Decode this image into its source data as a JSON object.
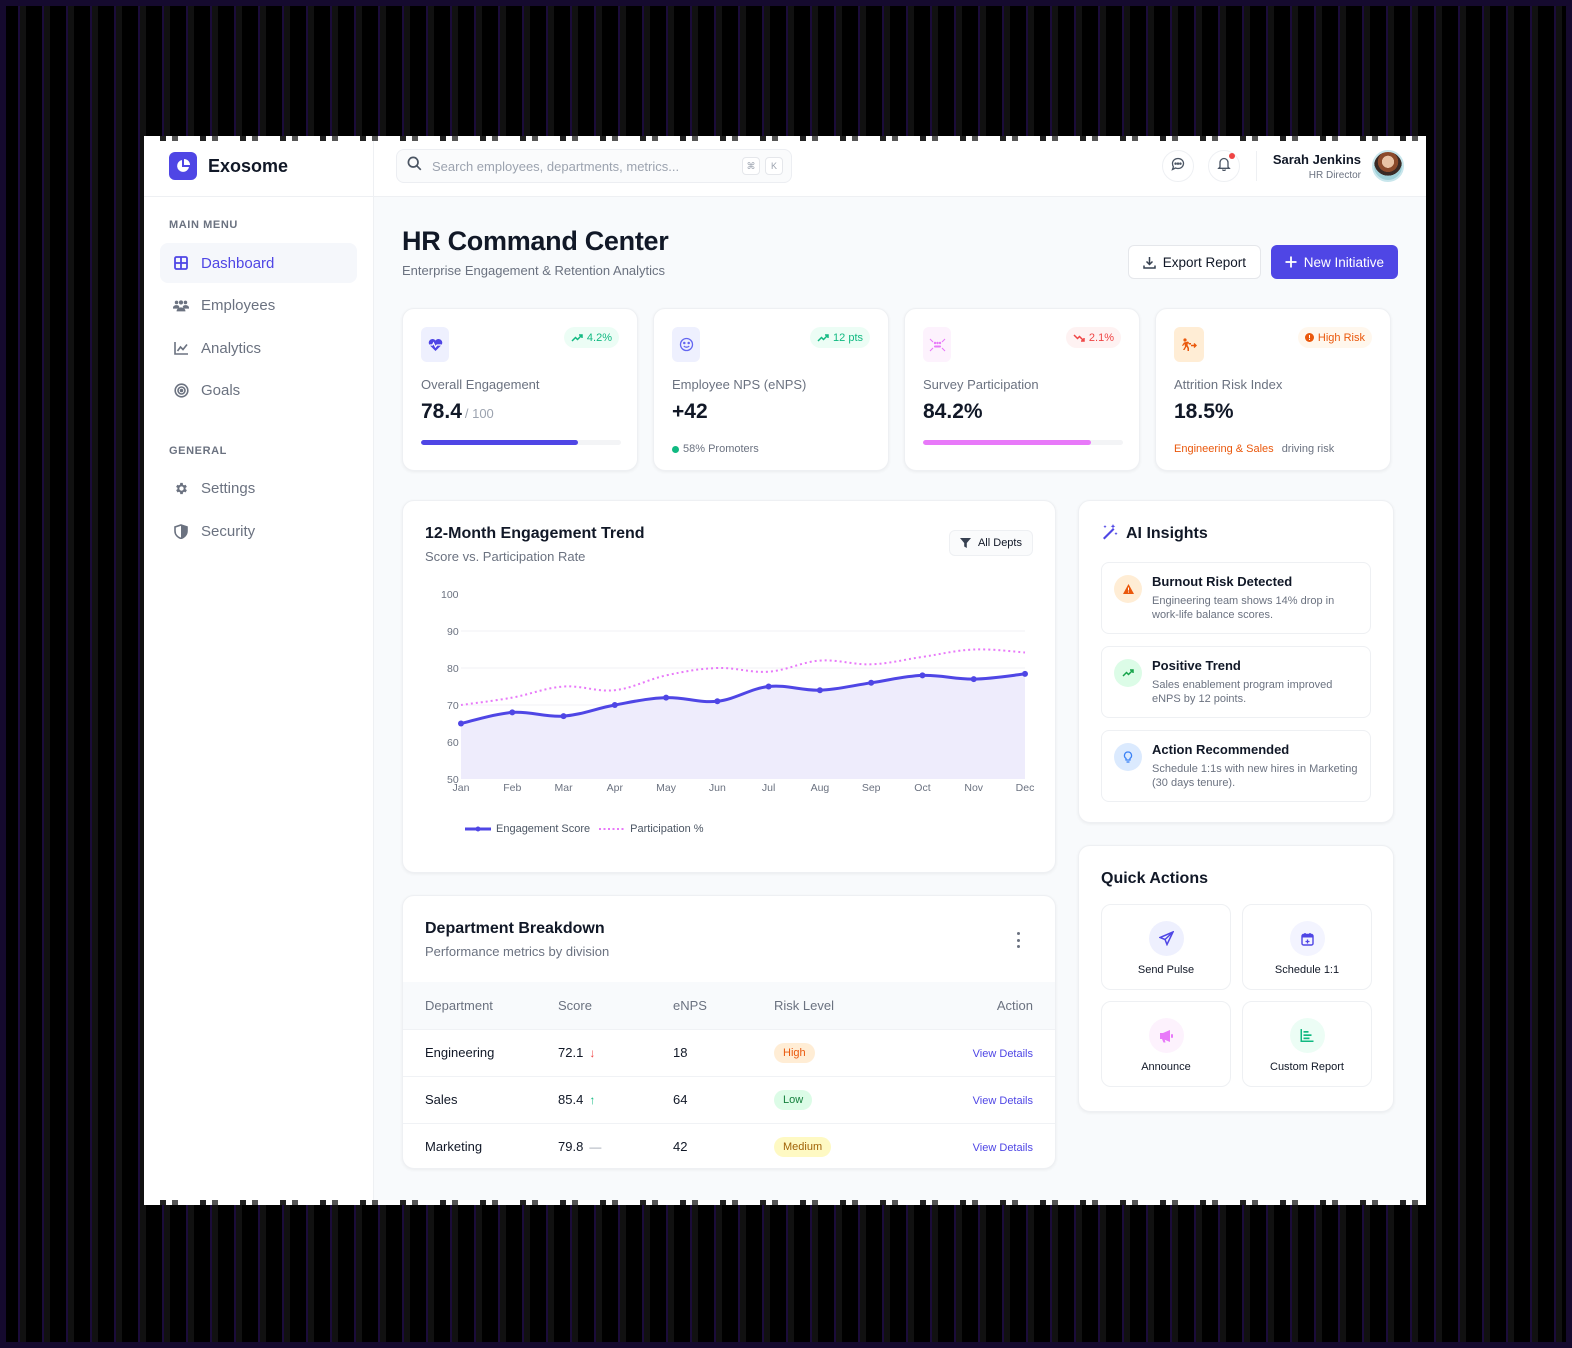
{
  "brand": {
    "name": "Exosome",
    "accent": "#4f46e5"
  },
  "sidebar": {
    "main_heading": "MAIN MENU",
    "general_heading": "GENERAL",
    "main_items": [
      {
        "label": "Dashboard",
        "icon": "grid-icon",
        "active": true
      },
      {
        "label": "Employees",
        "icon": "users-icon"
      },
      {
        "label": "Analytics",
        "icon": "line-chart-icon"
      },
      {
        "label": "Goals",
        "icon": "target-icon"
      }
    ],
    "general_items": [
      {
        "label": "Settings",
        "icon": "gear-icon"
      },
      {
        "label": "Security",
        "icon": "shield-icon"
      }
    ]
  },
  "topbar": {
    "search_placeholder": "Search employees, departments, metrics...",
    "shortcut_keys": [
      "⌘",
      "K"
    ],
    "user": {
      "name": "Sarah Jenkins",
      "role": "HR Director"
    }
  },
  "header": {
    "title": "HR Command Center",
    "subtitle": "Enterprise Engagement & Retention Analytics",
    "export_label": "Export Report",
    "new_label": "New Initiative"
  },
  "kpis": [
    {
      "label": "Overall Engagement",
      "value": "78.4",
      "unit": "/ 100",
      "badge": "4.2%",
      "badge_dir": "up",
      "progress": 78.4,
      "progress_color": "#4f46e5"
    },
    {
      "label": "Employee NPS (eNPS)",
      "value": "+42",
      "badge": "12 pts",
      "badge_dir": "up",
      "footnote": "58% Promoters"
    },
    {
      "label": "Survey Participation",
      "value": "84.2%",
      "badge": "2.1%",
      "badge_dir": "down",
      "progress": 84.2,
      "progress_color": "#e879f9"
    },
    {
      "label": "Attrition Risk Index",
      "value": "18.5%",
      "badge": "High Risk",
      "badge_dir": "alert",
      "footnote_highlight": "Engineering & Sales",
      "footnote_rest": "driving risk"
    }
  ],
  "trend_card": {
    "title": "12-Month Engagement Trend",
    "subtitle": "Score vs. Participation Rate",
    "filter_label": "All Depts"
  },
  "chart_data": {
    "type": "line",
    "title": "12-Month Engagement Trend",
    "subtitle": "Score vs. Participation Rate",
    "categories": [
      "Jan",
      "Feb",
      "Mar",
      "Apr",
      "May",
      "Jun",
      "Jul",
      "Aug",
      "Sep",
      "Oct",
      "Nov",
      "Dec"
    ],
    "series": [
      {
        "name": "Engagement Score",
        "style": "solid-area",
        "color": "#4f46e5",
        "values": [
          65,
          68,
          67,
          70,
          72,
          71,
          75,
          74,
          76,
          78,
          77,
          78.4
        ]
      },
      {
        "name": "Participation %",
        "style": "dotted",
        "color": "#e879f9",
        "values": [
          70,
          72,
          75,
          74,
          78,
          80,
          79,
          82,
          81,
          83,
          85,
          84.2
        ]
      }
    ],
    "yticks": [
      50,
      60,
      70,
      80,
      90,
      100
    ],
    "ylim": [
      50,
      100
    ],
    "xlabel": "",
    "ylabel": "",
    "grid": true,
    "legend_position": "bottom-left"
  },
  "department": {
    "title": "Department Breakdown",
    "subtitle": "Performance metrics by division",
    "columns": [
      "Department",
      "Score",
      "eNPS",
      "Risk Level",
      "Action"
    ],
    "rows": [
      {
        "department": "Engineering",
        "score": "72.1",
        "trend": "↓",
        "trend_color": "#ef4444",
        "enps": "18",
        "risk": "High",
        "risk_bg": "#ffedd5",
        "risk_fg": "#ea580c",
        "action": "View Details"
      },
      {
        "department": "Sales",
        "score": "85.4",
        "trend": "↑",
        "trend_color": "#10b981",
        "enps": "64",
        "risk": "Low",
        "risk_bg": "#dcfce7",
        "risk_fg": "#15803d",
        "action": "View Details"
      },
      {
        "department": "Marketing",
        "score": "79.8",
        "trend": "—",
        "trend_color": "#9ca3af",
        "enps": "42",
        "risk": "Medium",
        "risk_bg": "#fef9c3",
        "risk_fg": "#a16207",
        "action": "View Details"
      }
    ]
  },
  "ai_insights": {
    "title": "AI Insights",
    "items": [
      {
        "title": "Burnout Risk Detected",
        "text": "Engineering team shows 14% drop in work-life balance scores.",
        "icon": "warning-icon",
        "color": "#ea580c",
        "bg": "#ffedd5"
      },
      {
        "title": "Positive Trend",
        "text": "Sales enablement program improved eNPS by 12 points.",
        "icon": "trending-up-icon",
        "color": "#16a34a",
        "bg": "#dcfce7"
      },
      {
        "title": "Action Recommended",
        "text": "Schedule 1:1s with new hires in Marketing (30 days tenure).",
        "icon": "lightbulb-icon",
        "color": "#3b82f6",
        "bg": "#dbeafe"
      }
    ]
  },
  "quick_actions": {
    "title": "Quick Actions",
    "items": [
      {
        "label": "Send Pulse",
        "icon": "send-icon"
      },
      {
        "label": "Schedule 1:1",
        "icon": "calendar-plus-icon"
      },
      {
        "label": "Announce",
        "icon": "megaphone-icon"
      },
      {
        "label": "Custom Report",
        "icon": "report-icon"
      }
    ]
  }
}
